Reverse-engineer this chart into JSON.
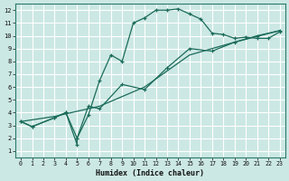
{
  "title": "",
  "xlabel": "Humidex (Indice chaleur)",
  "ylabel": "",
  "bg_color": "#cce8e4",
  "grid_color": "#ffffff",
  "line_color": "#1a6b5a",
  "xlim": [
    -0.5,
    23.5
  ],
  "ylim": [
    0.5,
    12.5
  ],
  "xticks": [
    0,
    1,
    2,
    3,
    4,
    5,
    6,
    7,
    8,
    9,
    10,
    11,
    12,
    13,
    14,
    15,
    16,
    17,
    18,
    19,
    20,
    21,
    22,
    23
  ],
  "yticks": [
    1,
    2,
    3,
    4,
    5,
    6,
    7,
    8,
    9,
    10,
    11,
    12
  ],
  "line1_x": [
    0,
    1,
    3,
    4,
    5,
    5,
    6,
    7,
    8,
    9,
    10,
    11,
    12,
    13,
    14,
    15,
    16,
    17,
    18,
    19,
    20,
    21,
    22,
    23
  ],
  "line1_y": [
    3.3,
    2.9,
    3.6,
    4.0,
    1.5,
    2.0,
    3.8,
    6.5,
    8.5,
    8.0,
    11.0,
    11.4,
    12.0,
    12.0,
    12.1,
    11.7,
    11.3,
    10.2,
    10.1,
    9.8,
    9.9,
    9.8,
    9.8,
    10.3
  ],
  "line2_x": [
    0,
    1,
    3,
    4,
    5,
    6,
    7,
    9,
    11,
    13,
    15,
    17,
    19,
    21,
    23
  ],
  "line2_y": [
    3.3,
    2.9,
    3.6,
    4.0,
    2.0,
    4.5,
    4.3,
    6.2,
    5.8,
    7.5,
    9.0,
    8.8,
    9.5,
    10.0,
    10.4
  ],
  "line3_x": [
    0,
    3,
    7,
    11,
    15,
    19,
    23
  ],
  "line3_y": [
    3.3,
    3.7,
    4.5,
    6.0,
    8.5,
    9.5,
    10.4
  ]
}
